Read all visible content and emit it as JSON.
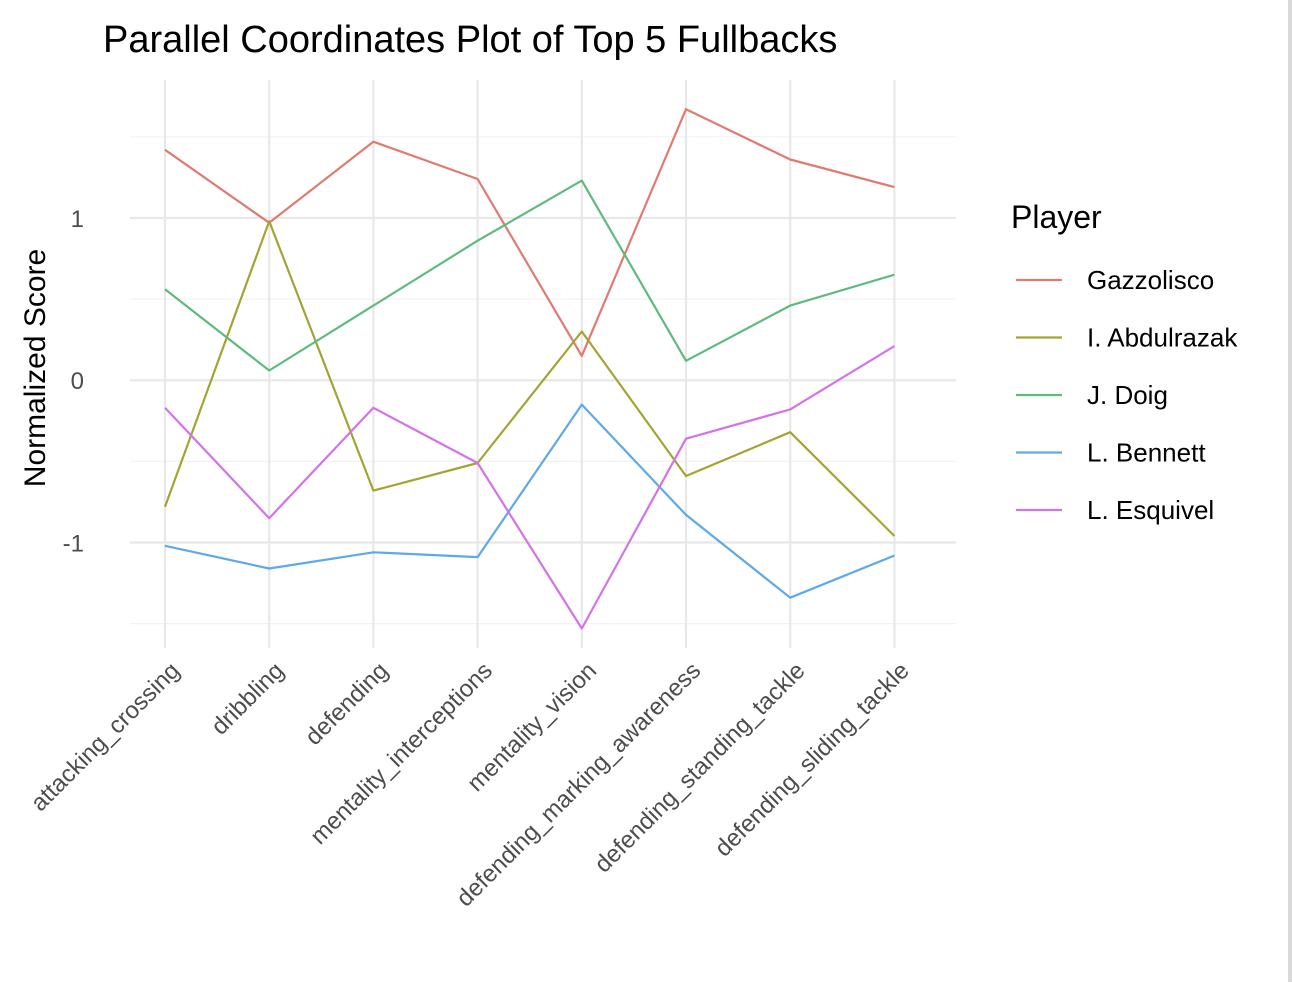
{
  "chart_data": {
    "type": "line",
    "title": "Parallel Coordinates Plot of Top 5 Fullbacks",
    "xlabel": "",
    "ylabel": "Normalized Score",
    "categories": [
      "attacking_crossing",
      "dribbling",
      "defending",
      "mentality_interceptions",
      "mentality_vision",
      "defending_marking_awareness",
      "defending_standing_tackle",
      "defending_sliding_tackle"
    ],
    "yticks": [
      -1,
      0,
      1
    ],
    "ytick_labels": [
      "-1",
      "0",
      "1"
    ],
    "ylim": [
      -1.65,
      1.85
    ],
    "grid": true,
    "legend": {
      "title": "Player",
      "position": "right"
    },
    "series": [
      {
        "name": "Gazzolisco",
        "color": "#E07B71",
        "values": [
          1.42,
          0.97,
          1.47,
          1.24,
          0.15,
          1.67,
          1.36,
          1.19
        ]
      },
      {
        "name": "I. Abdulrazak",
        "color": "#A3A533",
        "values": [
          -0.78,
          0.98,
          -0.68,
          -0.51,
          0.3,
          -0.59,
          -0.32,
          -0.96
        ]
      },
      {
        "name": "J. Doig",
        "color": "#5EBB7D",
        "values": [
          0.56,
          0.06,
          0.46,
          0.86,
          1.23,
          0.12,
          0.46,
          0.65
        ]
      },
      {
        "name": "L. Bennett",
        "color": "#5DA9E9",
        "values": [
          -1.02,
          -1.16,
          -1.06,
          -1.09,
          -0.15,
          -0.83,
          -1.34,
          -1.08
        ]
      },
      {
        "name": "L. Esquivel",
        "color": "#D373E8",
        "values": [
          -0.17,
          -0.85,
          -0.17,
          -0.51,
          -1.53,
          -0.36,
          -0.18,
          0.21
        ]
      }
    ]
  }
}
